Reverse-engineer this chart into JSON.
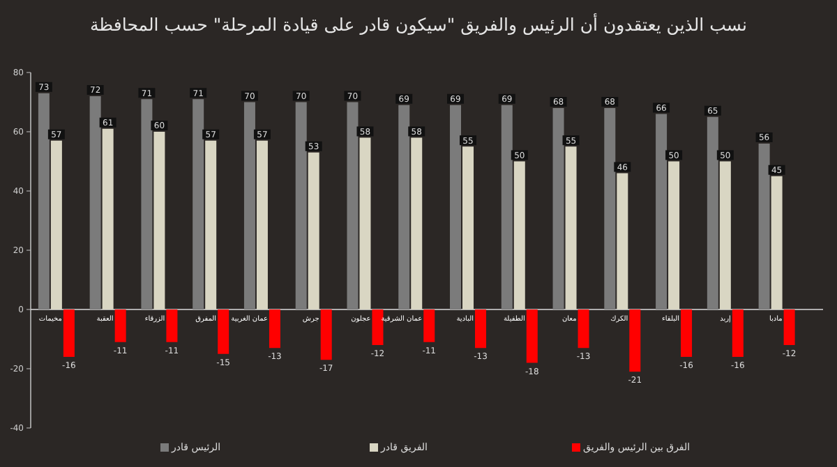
{
  "chart_data": {
    "type": "bar",
    "title": "نسب الذين يعتقدون أن الرئيس والفريق \"سيكون قادر على قيادة المرحلة\" حسب المحافظة",
    "categories": [
      "مخيمات",
      "العقبة",
      "الزرقاء",
      "المفرق",
      "عمان الغربية",
      "جرش",
      "عجلون",
      "عمان الشرقية",
      "البادية",
      "الطفيلة",
      "معان",
      "الكرك",
      "البلقاء",
      "إربد",
      "مادبا"
    ],
    "series": [
      {
        "name": "الرئيس قادر",
        "color": "#7b7b7b",
        "values": [
          73,
          72,
          71,
          71,
          70,
          70,
          70,
          69,
          69,
          69,
          68,
          68,
          66,
          65,
          56
        ]
      },
      {
        "name": "الفريق قادر",
        "color": "#d9d6c3",
        "values": [
          57,
          61,
          60,
          57,
          57,
          53,
          58,
          58,
          55,
          50,
          55,
          46,
          50,
          50,
          45
        ]
      },
      {
        "name": "الفرق بين الرئيس والفريق",
        "color": "#ff0000",
        "values": [
          -16,
          -11,
          -11,
          -15,
          -13,
          -17,
          -12,
          -11,
          -13,
          -18,
          -13,
          -21,
          -16,
          -16,
          -12
        ]
      }
    ],
    "ylim": [
      -40,
      80
    ],
    "yticks": [
      -40,
      -20,
      0,
      20,
      40,
      60,
      80
    ],
    "data_labels": true,
    "legend": "bottom"
  }
}
